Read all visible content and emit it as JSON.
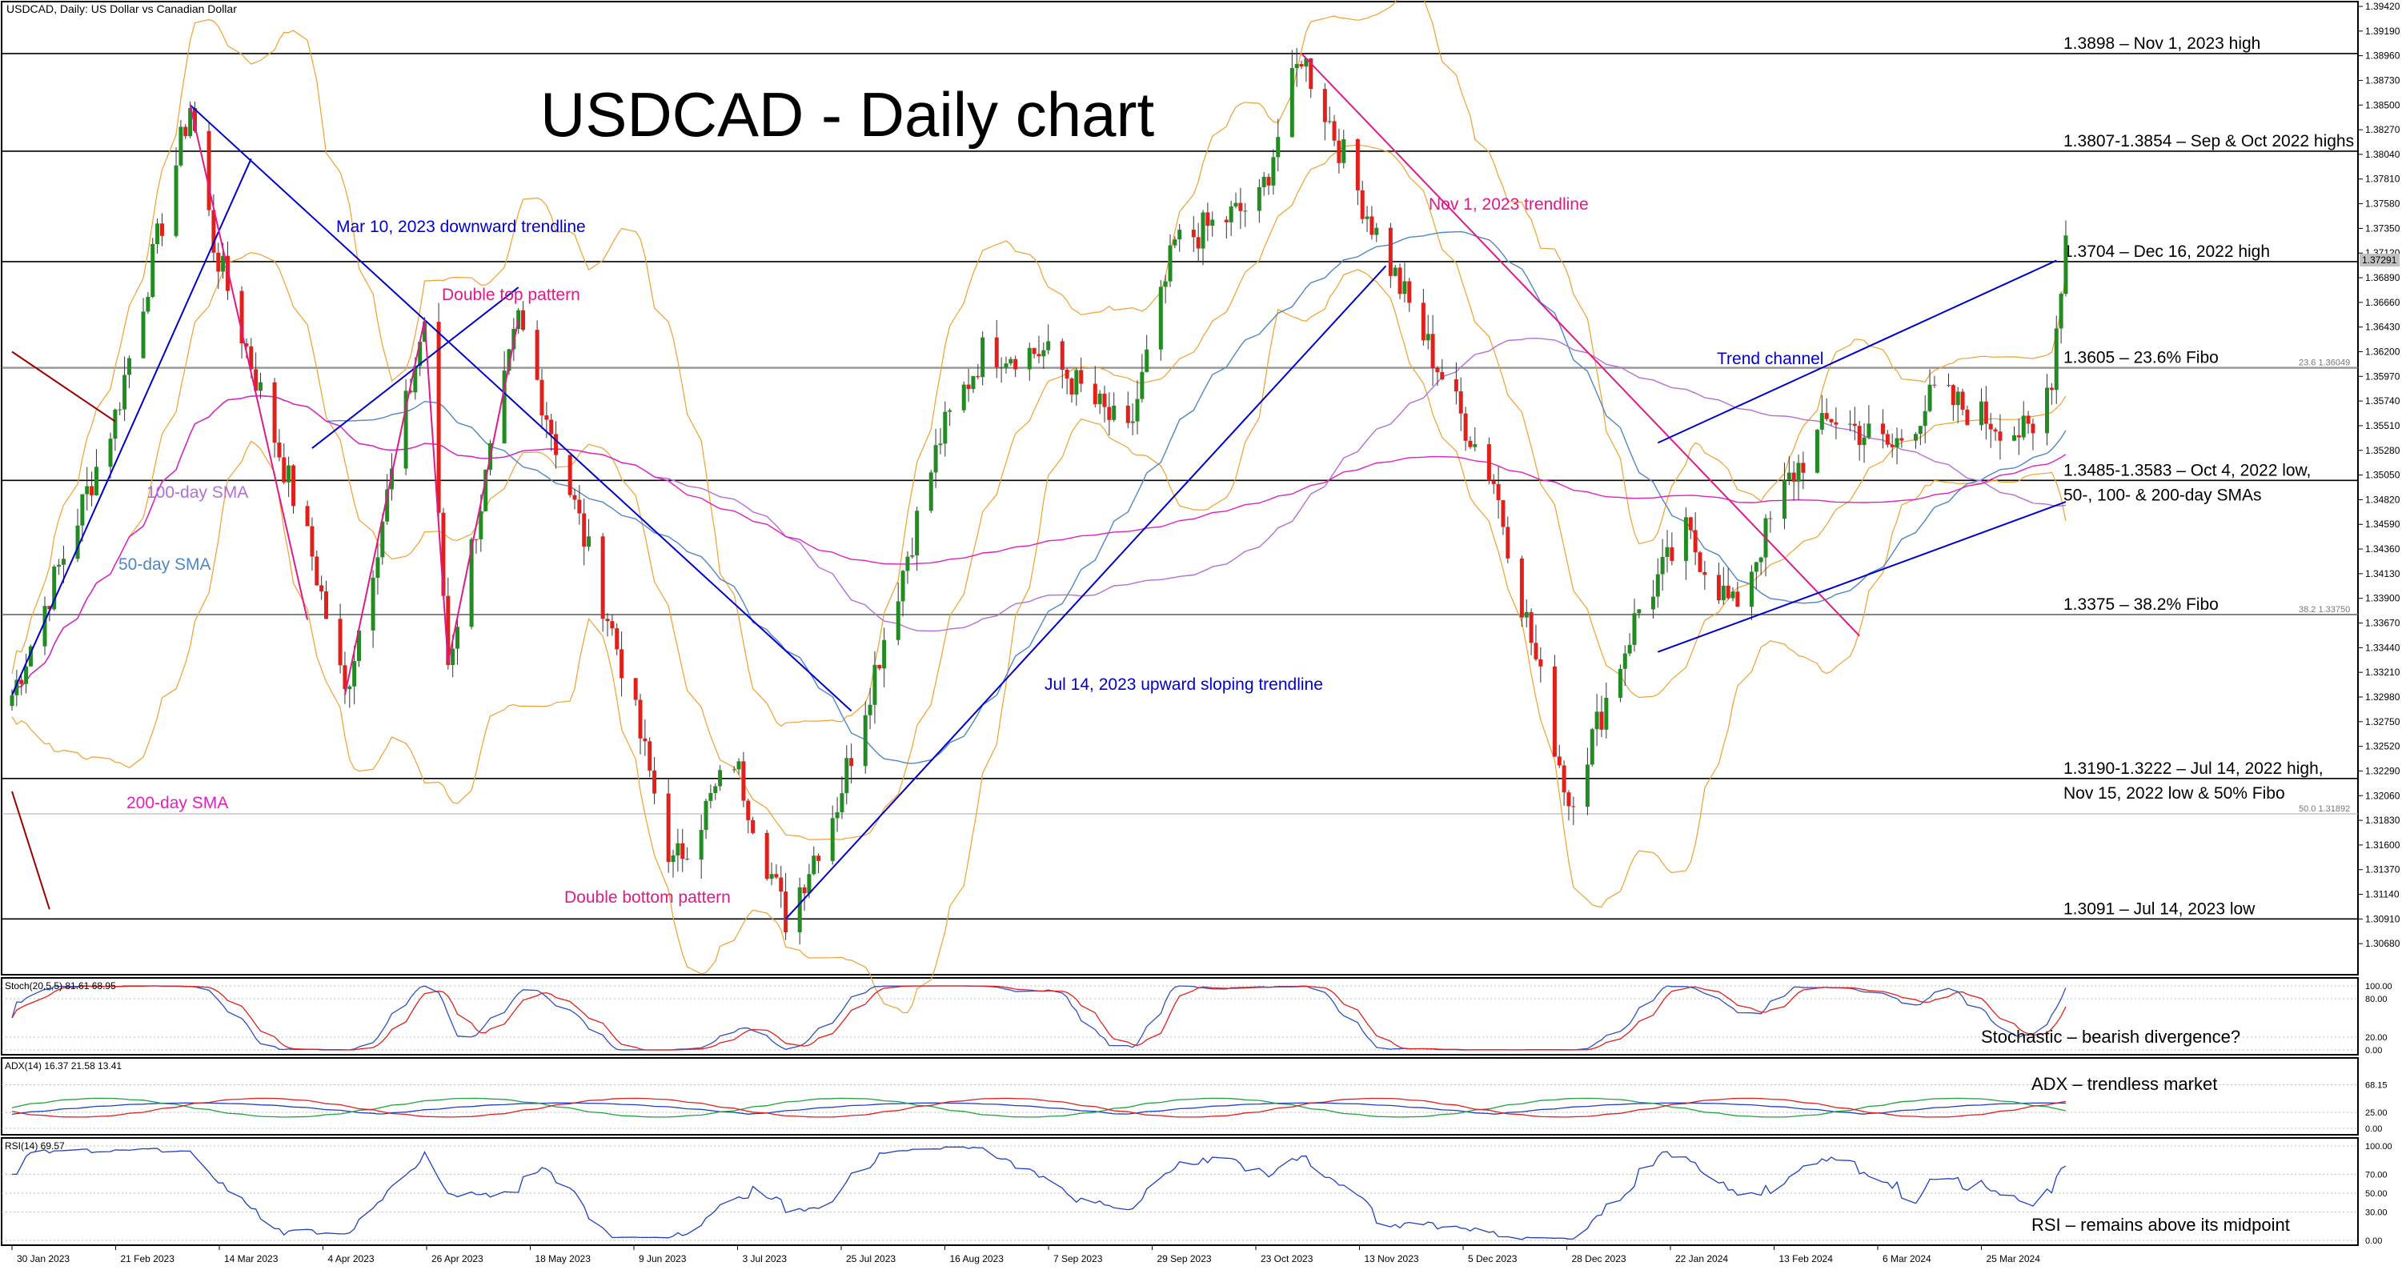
{
  "header": {
    "symbol_line": "USDCAD, Daily:  US Dollar vs Canadian Dollar"
  },
  "chart_data": {
    "type": "candlestick",
    "title": "USDCAD - Daily chart",
    "x_ticks": [
      "30 Jan 2023",
      "21 Feb 2023",
      "14 Mar 2023",
      "4 Apr 2023",
      "26 Apr 2023",
      "18 May 2023",
      "9 Jun 2023",
      "3 Jul 2023",
      "25 Jul 2023",
      "16 Aug 2023",
      "7 Sep 2023",
      "29 Sep 2023",
      "23 Oct 2023",
      "13 Nov 2023",
      "5 Dec 2023",
      "28 Dec 2023",
      "22 Jan 2024",
      "13 Feb 2024",
      "6 Mar 2024",
      "25 Mar 2024"
    ],
    "y_ticks": [
      1.3942,
      1.3919,
      1.3896,
      1.3873,
      1.385,
      1.3827,
      1.3804,
      1.3781,
      1.3758,
      1.3735,
      1.3712,
      1.3689,
      1.3666,
      1.3643,
      1.362,
      1.3597,
      1.3574,
      1.3551,
      1.3528,
      1.3505,
      1.3482,
      1.3459,
      1.3436,
      1.3413,
      1.339,
      1.3367,
      1.3344,
      1.3321,
      1.3298,
      1.3275,
      1.3252,
      1.3229,
      1.3206,
      1.3183,
      1.316,
      1.3137,
      1.3114,
      1.3091,
      1.3068
    ],
    "y_tick_labels": [
      "1.39420",
      "1.39190",
      "1.38960",
      "1.38730",
      "1.38500",
      "1.38270",
      "1.38040",
      "1.37810",
      "1.37580",
      "1.37350",
      "1.37120",
      "1.36890",
      "1.36660",
      "1.36430",
      "1.36200",
      "1.35970",
      "1.35740",
      "1.35510",
      "1.35280",
      "1.35050",
      "1.34820",
      "1.34590",
      "1.34360",
      "1.34130",
      "1.33900",
      "1.33670",
      "1.33440",
      "1.33210",
      "1.32980",
      "1.32750",
      "1.32520",
      "1.32290",
      "1.32060",
      "1.31830",
      "1.31600",
      "1.31370",
      "1.31140",
      "1.30910",
      "1.30680"
    ],
    "ylim": [
      1.3045,
      1.3942
    ],
    "current_price": "1.37291",
    "key_points": [
      {
        "date": "30 Jan 2023",
        "close": 1.33
      },
      {
        "date": "21 Feb 2023",
        "close": 1.356
      },
      {
        "date": "9 Mar 2023",
        "close": 1.385
      },
      {
        "date": "14 Mar 2023",
        "close": 1.372
      },
      {
        "date": "4 Apr 2023",
        "close": 1.343
      },
      {
        "date": "11 Apr 2023",
        "close": 1.33
      },
      {
        "date": "28 Apr 2023",
        "close": 1.365
      },
      {
        "date": "3 May 2023",
        "close": 1.333
      },
      {
        "date": "18 May 2023",
        "close": 1.365
      },
      {
        "date": "9 Jun 2023",
        "close": 1.333
      },
      {
        "date": "20 Jun 2023",
        "close": 1.314
      },
      {
        "date": "3 Jul 2023",
        "close": 1.324
      },
      {
        "date": "14 Jul 2023",
        "close": 1.3091
      },
      {
        "date": "25 Jul 2023",
        "close": 1.32
      },
      {
        "date": "16 Aug 2023",
        "close": 1.354
      },
      {
        "date": "25 Aug 2023",
        "close": 1.362
      },
      {
        "date": "7 Sep 2023",
        "close": 1.362
      },
      {
        "date": "25 Sep 2023",
        "close": 1.354
      },
      {
        "date": "5 Oct 2023",
        "close": 1.372
      },
      {
        "date": "23 Oct 2023",
        "close": 1.376
      },
      {
        "date": "1 Nov 2023",
        "close": 1.3898
      },
      {
        "date": "13 Nov 2023",
        "close": 1.377
      },
      {
        "date": "21 Nov 2023",
        "close": 1.369
      },
      {
        "date": "5 Dec 2023",
        "close": 1.356
      },
      {
        "date": "12 Dec 2023",
        "close": 1.35
      },
      {
        "date": "28 Dec 2023",
        "close": 1.32
      },
      {
        "date": "12 Jan 2024",
        "close": 1.338
      },
      {
        "date": "22 Jan 2024",
        "close": 1.345
      },
      {
        "date": "1 Feb 2024",
        "close": 1.338
      },
      {
        "date": "13 Feb 2024",
        "close": 1.35
      },
      {
        "date": "22 Feb 2024",
        "close": 1.356
      },
      {
        "date": "6 Mar 2024",
        "close": 1.353
      },
      {
        "date": "15 Mar 2024",
        "close": 1.358
      },
      {
        "date": "25 Mar 2024",
        "close": 1.356
      },
      {
        "date": "5 Apr 2024",
        "close": 1.354
      },
      {
        "date": "9 Apr 2024",
        "close": 1.36
      },
      {
        "date": "12 Apr 2024",
        "close": 1.3729
      }
    ],
    "levels": [
      {
        "label": "1.3898 – Nov 1, 2023 high",
        "value": 1.3898
      },
      {
        "label": "1.3807-1.3854 – Sep & Oct 2022 highs",
        "value": 1.3807
      },
      {
        "label": "1.3704 – Dec 16, 2022 high",
        "value": 1.3704
      },
      {
        "label": "1.3605 – 23.6% Fibo",
        "value": 1.3605
      },
      {
        "label": "1.3485-1.3583 – Oct 4, 2022 low,",
        "label2": "50-, 100- & 200-day SMAs",
        "value": 1.35
      },
      {
        "label": "1.3375 – 38.2% Fibo",
        "value": 1.3375
      },
      {
        "label": "1.3190-1.3222 – Jul 14, 2022 high,",
        "label2": "Nov 15, 2022 low & 50% Fibo",
        "value": 1.3222
      },
      {
        "label": "1.3091 – Jul 14, 2023 low",
        "value": 1.3091
      }
    ],
    "fibo_labels": [
      {
        "label": "23.6 1.36049",
        "value": 1.3605
      },
      {
        "label": "38.2 1.33750",
        "value": 1.3375
      },
      {
        "label": "50.0 1.31892",
        "value": 1.3189
      }
    ],
    "annotations": [
      {
        "text": "Mar 10, 2023 downward trendline",
        "color": "#0000cc"
      },
      {
        "text": "Double top pattern",
        "color": "#e0198a"
      },
      {
        "text": "100-day SMA",
        "color": "#b36fd6"
      },
      {
        "text": "50-day SMA",
        "color": "#4f86c6"
      },
      {
        "text": "200-day SMA",
        "color": "#e020c0"
      },
      {
        "text": "Double bottom pattern",
        "color": "#e0198a"
      },
      {
        "text": "Jul 14, 2023 upward sloping trendline",
        "color": "#0000cc"
      },
      {
        "text": "Nov 1, 2023 trendline",
        "color": "#e0198a"
      },
      {
        "text": "Trend channel",
        "color": "#0000cc"
      }
    ],
    "indicators": {
      "stoch": {
        "header": "Stoch(20,5,5) 81.61 68.95",
        "note": "Stochastic – bearish divergence?",
        "ticks": [
          "100.00",
          "80.00",
          "20.00",
          "0.00"
        ]
      },
      "adx": {
        "header": "ADX(14) 16.37 21.58 13.41",
        "note": "ADX – trendless market",
        "ticks": [
          "68.15",
          "25.00",
          "0.00"
        ]
      },
      "rsi": {
        "header": "RSI(14) 69.57",
        "note": "RSI – remains above its midpoint",
        "ticks": [
          "100.00",
          "70.00",
          "50.00",
          "30.00",
          "0.00"
        ]
      }
    },
    "colors": {
      "up": "#228b22",
      "down": "#e0201a",
      "bollinger": "#f0a030",
      "sma50": "#4f86c6",
      "sma100": "#b36fd6",
      "sma200": "#e020c0",
      "trend_blue": "#0000cc",
      "trend_pink": "#e0198a",
      "trend_darkred": "#990000"
    }
  }
}
